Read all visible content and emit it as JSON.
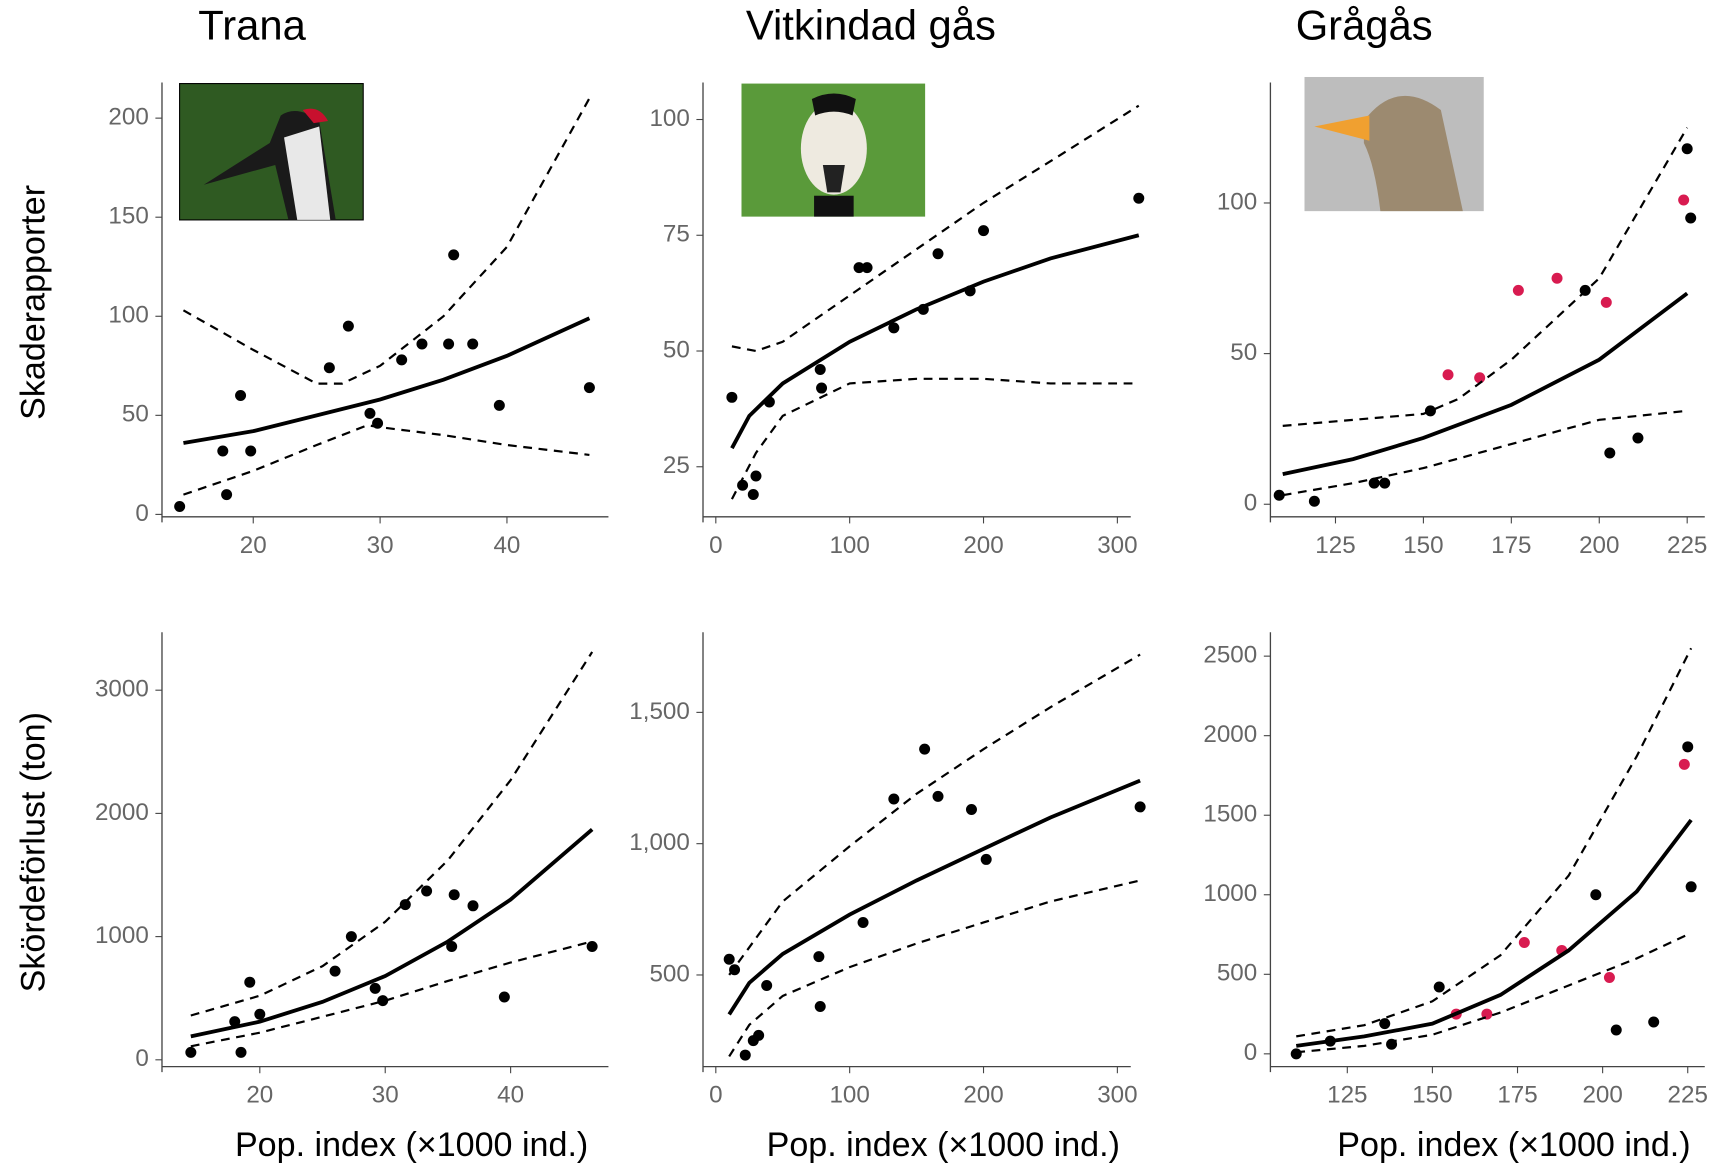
{
  "chart_data": [
    {
      "type": "scatter",
      "title": "Trana",
      "ylabel": "Skaderapporter",
      "xlim": [
        13.5,
        48
      ],
      "ylim": [
        -4,
        218
      ],
      "xticks": [
        20,
        30,
        40
      ],
      "yticks": [
        0,
        50,
        100,
        150,
        200
      ],
      "series": [
        {
          "mode": "markers",
          "color": "#000000",
          "x": [
            14.2,
            17.6,
            17.9,
            19.0,
            19.8,
            26,
            27.5,
            29.2,
            29.8,
            31.7,
            33.3,
            35.4,
            35.8,
            37.3,
            39.4,
            46.5
          ],
          "values": [
            4,
            32,
            10,
            60,
            32,
            74,
            95,
            51,
            46,
            78,
            86,
            86,
            131,
            86,
            55,
            64
          ]
        },
        {
          "mode": "line",
          "dash": false,
          "color": "#000000",
          "x": [
            14.5,
            20,
            25,
            30,
            35,
            40,
            46.5
          ],
          "values": [
            36,
            42,
            50,
            58,
            68,
            80,
            99
          ]
        },
        {
          "mode": "line",
          "dash": true,
          "color": "#000000",
          "x": [
            14.5,
            20,
            25,
            27,
            30,
            35,
            40,
            46.5
          ],
          "values": [
            103,
            83,
            66,
            66,
            75,
            100,
            135,
            210
          ]
        },
        {
          "mode": "line",
          "dash": true,
          "color": "#000000",
          "x": [
            14.5,
            20,
            25,
            29,
            30,
            35,
            40,
            46.5
          ],
          "values": [
            10,
            22,
            35,
            45,
            44,
            40,
            35,
            30
          ]
        }
      ]
    },
    {
      "type": "scatter",
      "title": "Vitkindad gås",
      "xlim": [
        -3,
        310
      ],
      "ylim": [
        13,
        108
      ],
      "xticks": [
        0,
        100,
        200,
        300
      ],
      "yticks": [
        25,
        50,
        75,
        100
      ],
      "series": [
        {
          "mode": "markers",
          "color": "#000000",
          "x": [
            12,
            20,
            28,
            30,
            40,
            78,
            79,
            107,
            113,
            133,
            155,
            166,
            190,
            200,
            316
          ],
          "values": [
            40,
            21,
            19,
            23,
            39,
            46,
            42,
            68,
            68,
            55,
            59,
            71,
            63,
            76,
            83
          ]
        },
        {
          "mode": "line",
          "dash": false,
          "color": "#000000",
          "x": [
            12,
            25,
            50,
            100,
            150,
            200,
            250,
            316
          ],
          "values": [
            29,
            36,
            43,
            52,
            59,
            65,
            70,
            75
          ]
        },
        {
          "mode": "line",
          "dash": true,
          "color": "#000000",
          "x": [
            12,
            30,
            50,
            100,
            150,
            200,
            250,
            316
          ],
          "values": [
            51,
            50,
            52,
            62,
            72,
            82,
            91,
            103
          ]
        },
        {
          "mode": "line",
          "dash": true,
          "color": "#000000",
          "x": [
            12,
            30,
            50,
            100,
            150,
            200,
            250,
            316
          ],
          "values": [
            18,
            28,
            36,
            43,
            44,
            44,
            43,
            43
          ]
        }
      ]
    },
    {
      "type": "scatter",
      "title": "Grågås",
      "xlim": [
        109,
        230
      ],
      "ylim": [
        -6,
        140
      ],
      "xticks": [
        125,
        150,
        175,
        200,
        225
      ],
      "yticks": [
        0,
        50,
        100
      ],
      "series": [
        {
          "mode": "markers",
          "color": "#000000",
          "x": [
            109,
            119,
            136,
            139,
            152,
            196,
            203,
            211,
            225,
            226
          ],
          "values": [
            3,
            1,
            7,
            7,
            31,
            71,
            17,
            22,
            118,
            95
          ]
        },
        {
          "mode": "markers",
          "color": "#d81b50",
          "x": [
            157,
            166,
            177,
            188,
            202,
            224
          ],
          "values": [
            43,
            42,
            71,
            75,
            67,
            101
          ]
        },
        {
          "mode": "line",
          "dash": false,
          "color": "#000000",
          "x": [
            110,
            130,
            150,
            175,
            200,
            225
          ],
          "values": [
            10,
            15,
            22,
            33,
            48,
            70
          ]
        },
        {
          "mode": "line",
          "dash": true,
          "color": "#000000",
          "x": [
            110,
            130,
            150,
            160,
            175,
            200,
            225
          ],
          "values": [
            26,
            28,
            30,
            35,
            48,
            75,
            125
          ]
        },
        {
          "mode": "line",
          "dash": true,
          "color": "#000000",
          "x": [
            110,
            130,
            150,
            175,
            200,
            225
          ],
          "values": [
            3,
            7,
            12,
            20,
            28,
            31
          ]
        }
      ]
    },
    {
      "type": "scatter",
      "ylabel": "Skördeförlust (ton)",
      "xlabel": "Pop. index (×1000 ind.)",
      "xlim": [
        12.9,
        47.8
      ],
      "ylim": [
        -100,
        3470
      ],
      "xticks": [
        20,
        30,
        40
      ],
      "yticks": [
        0,
        1000,
        2000,
        3000
      ],
      "series": [
        {
          "mode": "markers",
          "color": "#000000",
          "x": [
            14.5,
            18,
            18.5,
            19.2,
            20,
            26,
            27.3,
            29.2,
            29.8,
            31.6,
            33.3,
            35.3,
            35.5,
            37,
            39.5,
            46.5
          ],
          "values": [
            60,
            310,
            60,
            630,
            370,
            720,
            1000,
            580,
            480,
            1260,
            1370,
            920,
            1340,
            1250,
            510,
            920
          ]
        },
        {
          "mode": "line",
          "dash": false,
          "color": "#000000",
          "x": [
            14.5,
            20,
            25,
            30,
            35,
            40,
            46.5
          ],
          "values": [
            190,
            310,
            470,
            680,
            960,
            1300,
            1870
          ]
        },
        {
          "mode": "line",
          "dash": true,
          "color": "#000000",
          "x": [
            14.5,
            20,
            25,
            30,
            35,
            40,
            46.5
          ],
          "values": [
            360,
            520,
            760,
            1120,
            1620,
            2270,
            3310
          ]
        },
        {
          "mode": "line",
          "dash": true,
          "color": "#000000",
          "x": [
            14.5,
            20,
            25,
            30,
            35,
            40,
            46.5
          ],
          "values": [
            110,
            220,
            350,
            480,
            640,
            790,
            960
          ]
        }
      ]
    },
    {
      "type": "scatter",
      "xlabel": "Pop. index (×1000 ind.)",
      "xlim": [
        -3,
        310
      ],
      "ylim": [
        130,
        1805
      ],
      "xticks": [
        0,
        100,
        200,
        300
      ],
      "yticks": [
        500,
        {
          "value": 1000,
          "label": "1,000"
        },
        {
          "value": 1500,
          "label": "1,500"
        }
      ],
      "series": [
        {
          "mode": "markers",
          "color": "#000000",
          "x": [
            10,
            14,
            22,
            28,
            32,
            38,
            77,
            78,
            110,
            133,
            156,
            166,
            191,
            202,
            317
          ],
          "values": [
            560,
            520,
            195,
            250,
            270,
            460,
            570,
            380,
            700,
            1170,
            1360,
            1180,
            1130,
            940,
            1140
          ]
        },
        {
          "mode": "line",
          "dash": false,
          "color": "#000000",
          "x": [
            10,
            25,
            50,
            100,
            150,
            200,
            250,
            317
          ],
          "values": [
            350,
            470,
            580,
            730,
            860,
            980,
            1100,
            1240
          ]
        },
        {
          "mode": "line",
          "dash": true,
          "color": "#000000",
          "x": [
            10,
            50,
            100,
            150,
            200,
            250,
            317
          ],
          "values": [
            500,
            780,
            990,
            1190,
            1360,
            1520,
            1720
          ]
        },
        {
          "mode": "line",
          "dash": true,
          "color": "#000000",
          "x": [
            10,
            25,
            50,
            100,
            150,
            200,
            250,
            317
          ],
          "values": [
            190,
            310,
            420,
            530,
            620,
            700,
            780,
            860
          ]
        }
      ]
    },
    {
      "type": "scatter",
      "xlabel": "Pop. index (×1000 ind.)",
      "xlim": [
        105,
        230
      ],
      "ylim": [
        -115,
        2650
      ],
      "xticks": [
        125,
        150,
        175,
        200,
        225
      ],
      "yticks": [
        0,
        500,
        1000,
        1500,
        2000,
        2500
      ],
      "series": [
        {
          "mode": "markers",
          "color": "#000000",
          "x": [
            110,
            120,
            136,
            138,
            152,
            198,
            204,
            215,
            225,
            226
          ],
          "values": [
            0,
            80,
            190,
            60,
            420,
            1000,
            150,
            200,
            1930,
            1050
          ]
        },
        {
          "mode": "markers",
          "color": "#d81b50",
          "x": [
            157,
            166,
            177,
            188,
            202,
            224
          ],
          "values": [
            250,
            250,
            700,
            650,
            480,
            1820
          ]
        },
        {
          "mode": "line",
          "dash": false,
          "color": "#000000",
          "x": [
            110,
            130,
            150,
            170,
            190,
            210,
            226
          ],
          "values": [
            50,
            110,
            190,
            370,
            650,
            1020,
            1470
          ]
        },
        {
          "mode": "line",
          "dash": true,
          "color": "#000000",
          "x": [
            110,
            130,
            150,
            170,
            190,
            210,
            226
          ],
          "values": [
            110,
            180,
            330,
            620,
            1120,
            1870,
            2550
          ]
        },
        {
          "mode": "line",
          "dash": true,
          "color": "#000000",
          "x": [
            110,
            130,
            150,
            170,
            190,
            210,
            226
          ],
          "values": [
            10,
            50,
            120,
            260,
            430,
            600,
            760
          ]
        }
      ]
    }
  ]
}
